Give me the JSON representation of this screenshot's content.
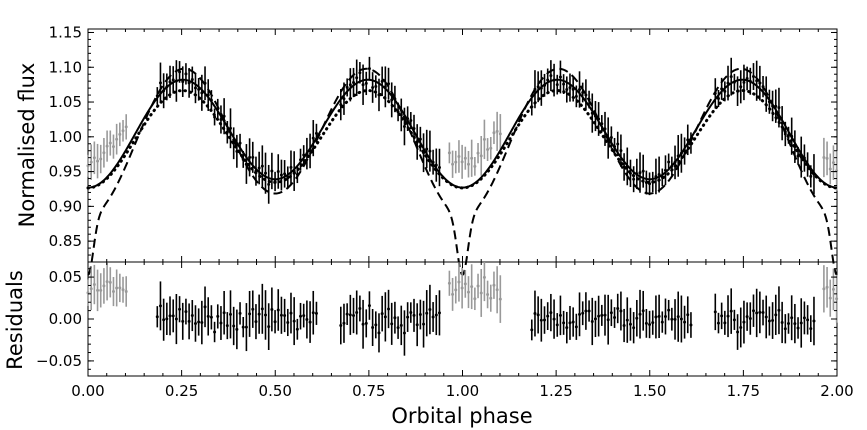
{
  "chart_data": [
    {
      "panel": "light-curve",
      "type": "line",
      "title": "",
      "xlabel": "",
      "ylabel": "Normalised flux",
      "xlim": [
        0.0,
        2.0
      ],
      "ylim": [
        0.82,
        1.155
      ],
      "y_ticks": [
        "0.85",
        "0.90",
        "0.95",
        "1.00",
        "1.05",
        "1.10",
        "1.15"
      ],
      "grid": false,
      "model_curves": [
        {
          "style": "solid",
          "color": "#000000",
          "mean": 1.0075,
          "amp1": -0.006,
          "amp2": -0.0745,
          "eclipse": 0.0
        },
        {
          "style": "dashed",
          "color": "#000000",
          "mean": 1.0,
          "amp1": -0.016,
          "amp2": -0.0975,
          "eclipse": 0.085
        },
        {
          "style": "dotted",
          "color": "#000000",
          "mean": 0.9985,
          "amp1": -0.004,
          "amp2": -0.068,
          "eclipse": 0.0
        }
      ],
      "data_points": {
        "gray_color": "#999999",
        "black_color": "#000000",
        "gray_phase_ranges": [
          [
            0.0,
            0.105
          ],
          [
            0.965,
            1.105
          ],
          [
            1.965,
            2.0
          ]
        ],
        "black_phase_ranges": [
          [
            0.185,
            0.61
          ],
          [
            0.675,
            0.945
          ],
          [
            1.185,
            1.61
          ],
          [
            1.675,
            1.945
          ]
        ]
      }
    },
    {
      "panel": "residuals",
      "type": "scatter",
      "title": "",
      "xlabel": "Orbital phase",
      "ylabel": "Residuals",
      "xlim": [
        0.0,
        2.0
      ],
      "ylim": [
        -0.068,
        0.068
      ],
      "x_ticks": [
        "0.00",
        "0.25",
        "0.50",
        "0.75",
        "1.00",
        "1.25",
        "1.50",
        "1.75",
        "2.00"
      ],
      "y_ticks": [
        "−0.05",
        "0.00",
        "0.05"
      ],
      "grid": false,
      "gray_offset": 0.035
    }
  ]
}
